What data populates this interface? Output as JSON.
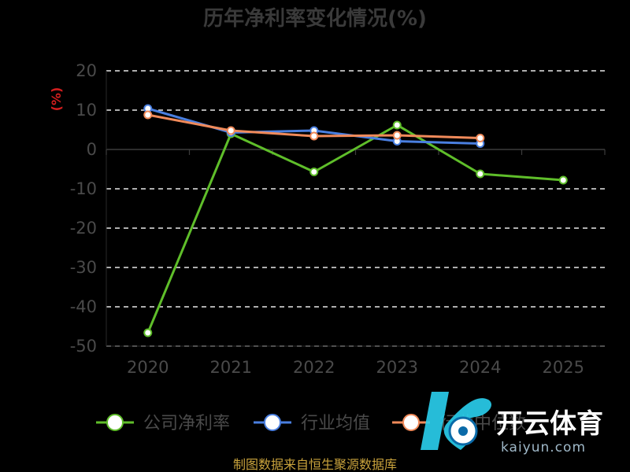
{
  "chart_data": {
    "type": "line",
    "title": "历年净利率变化情况(%)",
    "ylabel": "(%)",
    "xlabel": "",
    "categories": [
      "2020",
      "2021",
      "2022",
      "2023",
      "2024",
      "2025"
    ],
    "ylim": [
      -50,
      20
    ],
    "yticks": [
      20,
      10,
      0,
      -10,
      -20,
      -30,
      -40,
      -50
    ],
    "grid": true,
    "legend_position": "bottom",
    "series": [
      {
        "name": "公司净利率",
        "color": "#5fbe2a",
        "values": [
          -46.6,
          4.0,
          -5.7,
          6.2,
          -6.2,
          -7.8
        ]
      },
      {
        "name": "行业均值",
        "color": "#4a7fe0",
        "values": [
          10.4,
          4.3,
          4.8,
          2.1,
          1.5,
          null
        ]
      },
      {
        "name": "行业中位数",
        "color": "#f08a5a",
        "values": [
          8.8,
          4.8,
          3.4,
          3.6,
          2.9,
          null
        ]
      }
    ]
  },
  "source_text": "制图数据来自恒生聚源数据库",
  "watermark": {
    "brand": "开云体育",
    "domain": "kaiyun.com"
  }
}
